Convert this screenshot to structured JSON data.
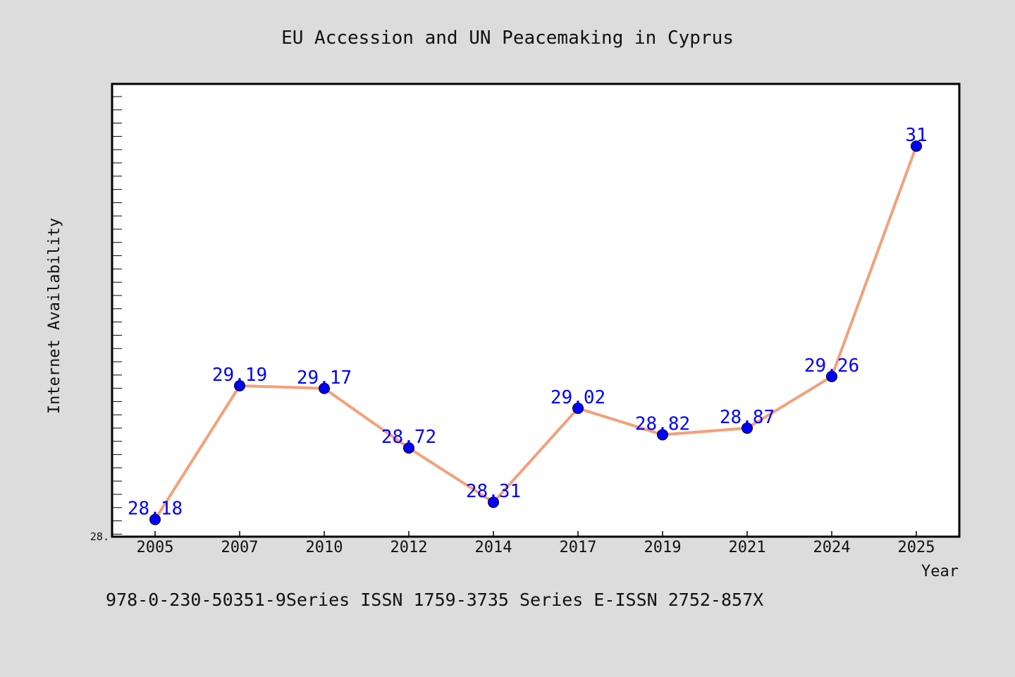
{
  "chart_data": {
    "type": "line",
    "title": "EU Accession and UN Peacemaking in Cyprus",
    "xlabel": "Year",
    "ylabel": "Internet Availability",
    "categories": [
      "2005",
      "2007",
      "2010",
      "2012",
      "2014",
      "2017",
      "2019",
      "2021",
      "2024",
      "2025"
    ],
    "series": [
      {
        "values": [
          28.18,
          29.19,
          29.17,
          28.72,
          28.31,
          29.02,
          28.82,
          28.87,
          29.26,
          31
        ],
        "labels": [
          "28.18",
          "29.19",
          "29.17",
          "28.72",
          "28.31",
          "29.02",
          "28.82",
          "28.87",
          "29.26",
          "31"
        ],
        "line_color": "#f4a07a",
        "marker_color": "#0000ff"
      }
    ],
    "ytick_labels": [
      "28."
    ],
    "ylim": [
      28.05,
      31.47
    ],
    "grid": false,
    "legend": "none"
  },
  "footer": {
    "text": "978-0-230-50351-9Series ISSN 1759-3735 Series E-ISSN 2752-857X"
  }
}
